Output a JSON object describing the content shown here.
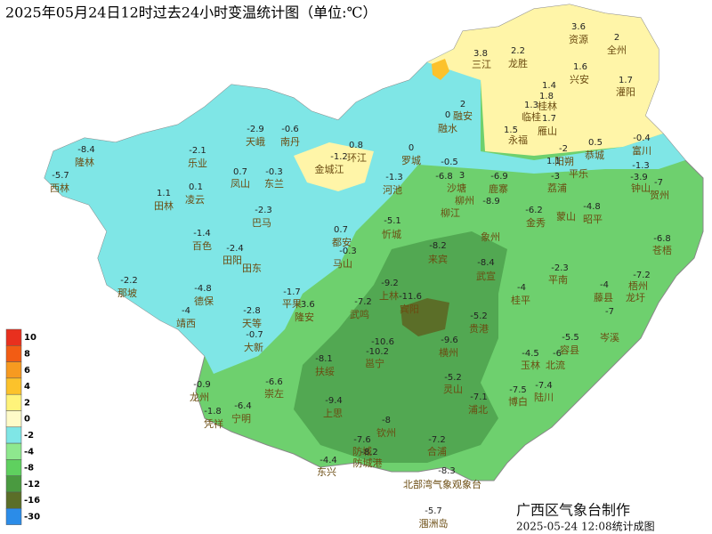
{
  "header": {
    "title": "2025年05月24日12时过去24小时变温统计图（单位:℃）"
  },
  "legend": [
    {
      "label": 10,
      "color": "#e8301e"
    },
    {
      "label": 8,
      "color": "#f25c14"
    },
    {
      "label": 6,
      "color": "#f79a20"
    },
    {
      "label": 4,
      "color": "#fcc22b"
    },
    {
      "label": 2,
      "color": "#fff37a"
    },
    {
      "label": 0,
      "color": "#fffbc8"
    },
    {
      "label": -2,
      "color": "#7fe6e6"
    },
    {
      "label": -4,
      "color": "#8ee88e"
    },
    {
      "label": -8,
      "color": "#5fd05f"
    },
    {
      "label": -12,
      "color": "#4a9a40"
    },
    {
      "label": -16,
      "color": "#5b6e28"
    },
    {
      "label": -30,
      "color": "#2b8ce8"
    }
  ],
  "map": {
    "readings": [
      3.6,
      2,
      3.8,
      2.2,
      1.6,
      1.7,
      1.4,
      1.8,
      1.3,
      2,
      0,
      1.7,
      1.5,
      -0.4,
      -2.9,
      -0.6,
      -8.4,
      -2.1,
      0.8,
      0,
      -2,
      0.5,
      -1.2,
      1.1,
      -1.3,
      -5.7,
      0.7,
      -0.3,
      -1.3,
      -0.5,
      3,
      -6.9,
      -6.8,
      -3,
      -3.9,
      -7,
      1.1,
      0.1,
      -2.3,
      0.7,
      -5.1,
      -8.9,
      -6.2,
      -4.8,
      -1.4,
      -2.4,
      -0.3,
      -8.2,
      -8.4,
      -6.8,
      -2.2,
      -4.8,
      -1.7,
      -3.6,
      -9.2,
      -11.6,
      -7.2,
      -2.3,
      -4,
      -4,
      -7.2,
      -4,
      -2.8,
      -0.7,
      -5.2,
      -9.6,
      -10.6,
      -10.2,
      -5.5,
      -7,
      -4.5,
      -6,
      -8.1,
      -0.9,
      -6.6,
      -6.4,
      -1.8,
      -9.4,
      -5.2,
      -7.1,
      -7.5,
      -7.4,
      -8,
      -7.6,
      -7.2,
      -8.2,
      -4.4,
      -8.3,
      -5.7
    ],
    "places": [
      "资源",
      "全州",
      "三江",
      "龙胜",
      "兴安",
      "灌阳",
      "桂林",
      "临桂",
      "融安",
      "融水",
      "雁山",
      "永福",
      "阳朔",
      "恭城",
      "富川",
      "天峨",
      "南丹",
      "隆林",
      "乐业",
      "环江",
      "罗城",
      "平乐",
      "钟山",
      "西林",
      "凤山",
      "东兰",
      "金城江",
      "河池",
      "沙塘",
      "柳州",
      "柳江",
      "鹿寨",
      "荔浦",
      "贺州",
      "田林",
      "凌云",
      "巴马",
      "金秀",
      "蒙山",
      "昭平",
      "百色",
      "田阳",
      "田东",
      "都安",
      "马山",
      "忻城",
      "来宾",
      "象州",
      "武宣",
      "苍梧",
      "那坡",
      "德保",
      "平果",
      "隆安",
      "上林",
      "宾阳",
      "武鸣",
      "桂平",
      "平南",
      "藤县",
      "梧州",
      "龙圩",
      "靖西",
      "天等",
      "大新",
      "贵港",
      "横州",
      "邕宁",
      "岑溪",
      "容县",
      "玉林",
      "北流",
      "扶绥",
      "龙州",
      "崇左",
      "宁明",
      "凭祥",
      "上思",
      "灵山",
      "浦北",
      "博白",
      "陆川",
      "钦州",
      "防城",
      "防城港",
      "合浦",
      "东兴",
      "北部湾气象观象台",
      "涠洲岛"
    ]
  },
  "footer": {
    "maker": "广西区气象台制作",
    "time": "2025-05-24 12:08统计成图"
  }
}
